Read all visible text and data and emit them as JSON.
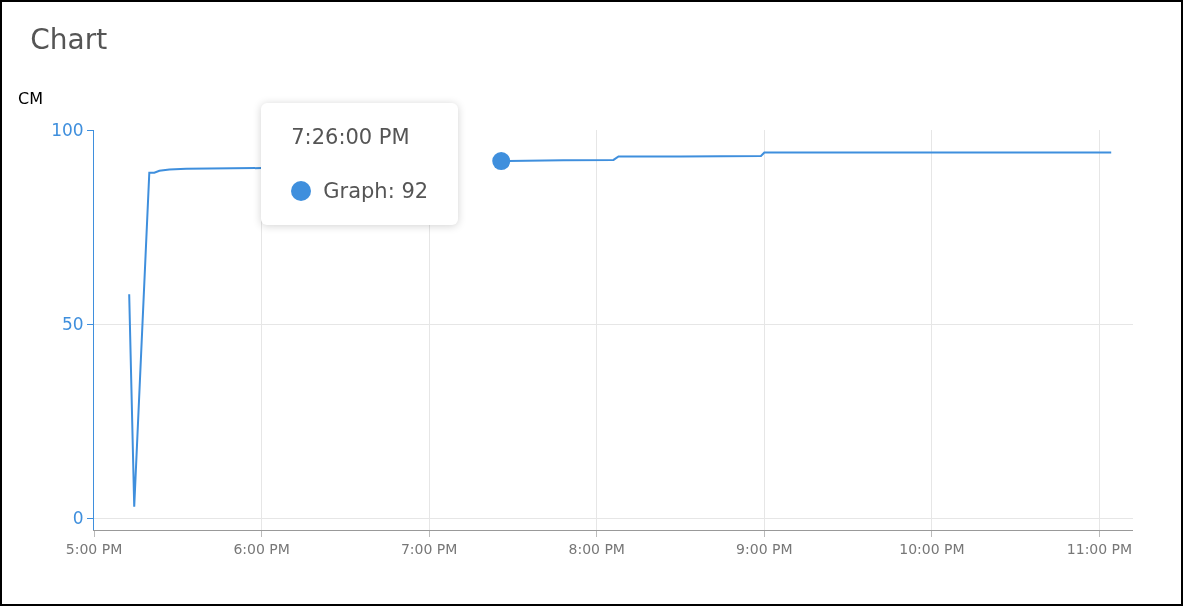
{
  "chart_data": {
    "type": "line",
    "title": "Chart",
    "ylabel": "CM",
    "x": [
      17.21,
      17.24,
      17.33,
      17.36,
      17.39,
      17.45,
      17.55,
      18.0,
      18.5,
      19.0,
      19.43,
      19.8,
      20.1,
      20.13,
      20.5,
      20.98,
      21.0,
      22.0,
      23.07
    ],
    "series": [
      {
        "color": "#3f8fdd",
        "values": [
          57.7,
          3,
          89,
          89,
          89.5,
          89.8,
          90,
          90.2,
          null,
          null,
          92,
          92.2,
          92.3,
          93.2,
          93.2,
          93.3,
          94.2,
          94.2,
          94.2
        ]
      },
      {
        "type": "scatter",
        "marker": "circle",
        "color": "#3f8fdd",
        "x": [
          19.43
        ],
        "values": [
          92
        ]
      }
    ],
    "xlim": [
      17,
      23.2
    ],
    "xticks": [
      {
        "value": 17,
        "label": "5:00 PM"
      },
      {
        "value": 18,
        "label": "6:00 PM"
      },
      {
        "value": 19,
        "label": "7:00 PM"
      },
      {
        "value": 20,
        "label": "8:00 PM"
      },
      {
        "value": 21,
        "label": "9:00 PM"
      },
      {
        "value": 22,
        "label": "10:00 PM"
      },
      {
        "value": 23,
        "label": "11:00 PM"
      }
    ],
    "ylim": [
      -3,
      100
    ],
    "yticks": [
      0,
      50,
      100
    ],
    "grid": true,
    "marker": "none",
    "line_style": "solid",
    "annotations": [
      "7:26:00 PM",
      "Graph: 92"
    ]
  }
}
